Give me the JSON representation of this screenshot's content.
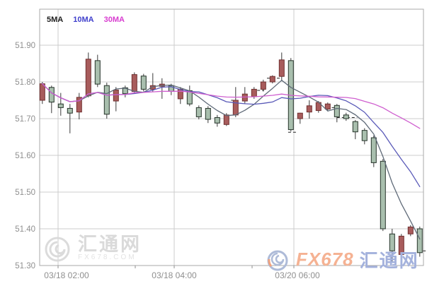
{
  "legend": {
    "items": [
      {
        "label": "5MA",
        "color": "#1c1c1c"
      },
      {
        "label": "10MA",
        "color": "#4040cc"
      },
      {
        "label": "30MA",
        "color": "#d83cd0"
      }
    ]
  },
  "watermark_left": {
    "site_name": "汇通网",
    "site_domain": "FX678.COM"
  },
  "watermark_right": {
    "brand": "FX678",
    "site_name": "汇通网"
  },
  "colors": {
    "up_fill": "#a85c5c",
    "up_stroke": "#703030",
    "down_fill": "#a9bfae",
    "down_stroke": "#26342a",
    "wick": "#3a3a3a",
    "ma5": "#5f6a78",
    "ma10": "#5a5ab8",
    "ma30": "#cf5fcf",
    "grid": "#cccccc",
    "border": "#aaaaaa",
    "axis_text": "#8f8f8f",
    "dash": "#222222"
  },
  "chart_data": {
    "type": "candlestick",
    "title": "",
    "legend_position": "top-left-inside",
    "grid": true,
    "ma_periods": [
      5,
      10,
      30
    ],
    "y_axis": {
      "min": 51.3,
      "max": 52.0,
      "tick_step": 0.1,
      "tick_labels": [
        "51.90",
        "51.80",
        "51.70",
        "51.60",
        "51.50",
        "51.40",
        "51.30"
      ],
      "tick_values": [
        51.9,
        51.8,
        51.7,
        51.6,
        51.5,
        51.4,
        51.3
      ]
    },
    "x_axis": {
      "tick_labels": [
        "03/18 02:00",
        "03/18 04:00",
        "03/20 06:00"
      ]
    },
    "candles": [
      {
        "o": 51.75,
        "h": 51.8,
        "l": 51.74,
        "c": 51.795,
        "dir": "up"
      },
      {
        "o": 51.785,
        "h": 51.79,
        "l": 51.715,
        "c": 51.745,
        "dir": "down"
      },
      {
        "o": 51.74,
        "h": 51.77,
        "l": 51.708,
        "c": 51.73,
        "dir": "down"
      },
      {
        "o": 51.728,
        "h": 51.74,
        "l": 51.66,
        "c": 51.715,
        "dir": "down"
      },
      {
        "o": 51.718,
        "h": 51.77,
        "l": 51.698,
        "c": 51.758,
        "dir": "up"
      },
      {
        "o": 51.762,
        "h": 51.88,
        "l": 51.758,
        "c": 51.862,
        "dir": "up"
      },
      {
        "o": 51.858,
        "h": 51.874,
        "l": 51.786,
        "c": 51.794,
        "dir": "down"
      },
      {
        "o": 51.79,
        "h": 51.798,
        "l": 51.7,
        "c": 51.712,
        "dir": "down"
      },
      {
        "o": 51.748,
        "h": 51.786,
        "l": 51.72,
        "c": 51.778,
        "dir": "up"
      },
      {
        "o": 51.784,
        "h": 51.79,
        "l": 51.758,
        "c": 51.768,
        "dir": "down"
      },
      {
        "o": 51.774,
        "h": 51.826,
        "l": 51.77,
        "c": 51.82,
        "dir": "up"
      },
      {
        "o": 51.816,
        "h": 51.822,
        "l": 51.774,
        "c": 51.78,
        "dir": "down"
      },
      {
        "o": 51.78,
        "h": 51.824,
        "l": 51.774,
        "c": 51.79,
        "dir": "up"
      },
      {
        "o": 51.788,
        "h": 51.81,
        "l": 51.754,
        "c": 51.794,
        "dir": "up"
      },
      {
        "o": 51.79,
        "h": 51.795,
        "l": 51.764,
        "c": 51.774,
        "dir": "down"
      },
      {
        "o": 51.754,
        "h": 51.786,
        "l": 51.74,
        "c": 51.78,
        "dir": "up"
      },
      {
        "o": 51.776,
        "h": 51.79,
        "l": 51.734,
        "c": 51.74,
        "dir": "down"
      },
      {
        "o": 51.73,
        "h": 51.736,
        "l": 51.698,
        "c": 51.705,
        "dir": "down"
      },
      {
        "o": 51.728,
        "h": 51.734,
        "l": 51.688,
        "c": 51.698,
        "dir": "down"
      },
      {
        "o": 51.703,
        "h": 51.71,
        "l": 51.678,
        "c": 51.688,
        "dir": "down"
      },
      {
        "o": 51.684,
        "h": 51.715,
        "l": 51.68,
        "c": 51.71,
        "dir": "up"
      },
      {
        "o": 51.71,
        "h": 51.786,
        "l": 51.704,
        "c": 51.75,
        "dir": "up"
      },
      {
        "o": 51.748,
        "h": 51.786,
        "l": 51.74,
        "c": 51.767,
        "dir": "up"
      },
      {
        "o": 51.76,
        "h": 51.786,
        "l": 51.754,
        "c": 51.78,
        "dir": "up"
      },
      {
        "o": 51.78,
        "h": 51.806,
        "l": 51.774,
        "c": 51.8,
        "dir": "up"
      },
      {
        "o": 51.8,
        "h": 51.818,
        "l": 51.796,
        "c": 51.815,
        "dir": "up"
      },
      {
        "o": 51.815,
        "h": 51.88,
        "l": 51.805,
        "c": 51.86,
        "dir": "up"
      },
      {
        "o": 51.858,
        "h": 51.865,
        "l": 51.665,
        "c": 51.67,
        "dir": "down"
      },
      {
        "o": 51.7,
        "h": 51.716,
        "l": 51.686,
        "c": 51.715,
        "dir": "up"
      },
      {
        "o": 51.718,
        "h": 51.75,
        "l": 51.7,
        "c": 51.735,
        "dir": "up"
      },
      {
        "o": 51.722,
        "h": 51.748,
        "l": 51.716,
        "c": 51.744,
        "dir": "up"
      },
      {
        "o": 51.726,
        "h": 51.744,
        "l": 51.72,
        "c": 51.74,
        "dir": "up"
      },
      {
        "o": 51.736,
        "h": 51.74,
        "l": 51.69,
        "c": 51.705,
        "dir": "down"
      },
      {
        "o": 51.71,
        "h": 51.716,
        "l": 51.694,
        "c": 51.7,
        "dir": "down"
      },
      {
        "o": 51.692,
        "h": 51.696,
        "l": 51.644,
        "c": 51.664,
        "dir": "down"
      },
      {
        "o": 51.668,
        "h": 51.674,
        "l": 51.63,
        "c": 51.64,
        "dir": "down"
      },
      {
        "o": 51.648,
        "h": 51.654,
        "l": 51.568,
        "c": 51.58,
        "dir": "down"
      },
      {
        "o": 51.584,
        "h": 51.59,
        "l": 51.394,
        "c": 51.4,
        "dir": "down"
      },
      {
        "o": 51.386,
        "h": 51.4,
        "l": 51.31,
        "c": 51.34,
        "dir": "down"
      },
      {
        "o": 51.33,
        "h": 51.386,
        "l": 51.32,
        "c": 51.38,
        "dir": "up"
      },
      {
        "o": 51.386,
        "h": 51.41,
        "l": 51.38,
        "c": 51.405,
        "dir": "up"
      },
      {
        "o": 51.4,
        "h": 51.406,
        "l": 51.324,
        "c": 51.335,
        "dir": "down"
      }
    ],
    "dash_markers": [
      {
        "i1": 20.5,
        "i2": 21.3,
        "price": 51.75
      },
      {
        "i1": 22.8,
        "i2": 24.1,
        "price": 51.777
      },
      {
        "i1": 24.4,
        "i2": 26.0,
        "price": 51.81
      },
      {
        "i1": 26.7,
        "i2": 27.6,
        "price": 51.663
      },
      {
        "i1": 30.9,
        "i2": 32.5,
        "price": 51.73
      },
      {
        "i1": 32.0,
        "i2": 34.2,
        "price": 51.703
      },
      {
        "i1": 40.8,
        "i2": 41.8,
        "price": 51.34
      }
    ]
  }
}
